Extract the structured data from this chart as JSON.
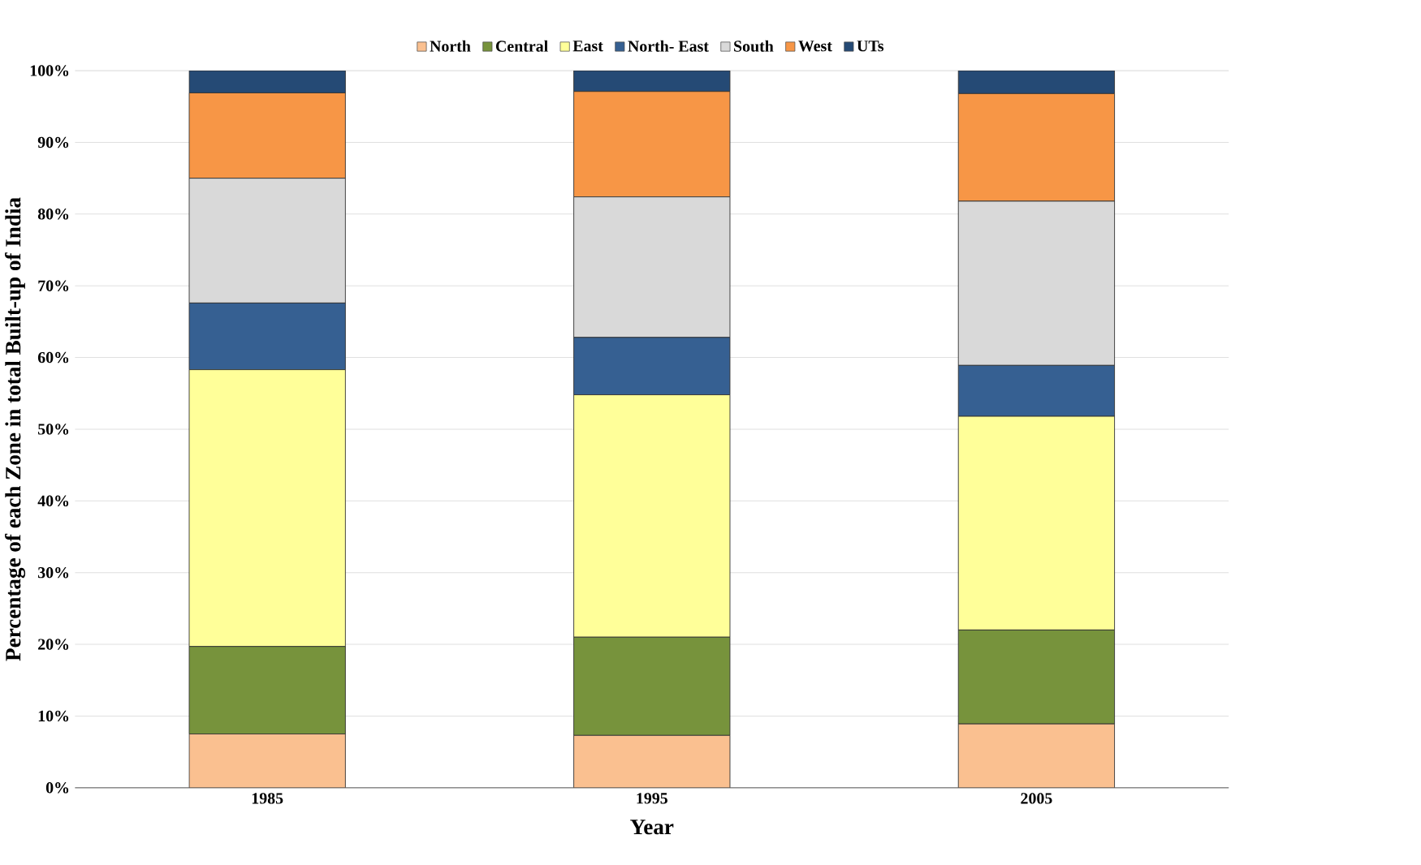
{
  "chart_data": {
    "type": "bar",
    "stacked": true,
    "xlabel": "Year",
    "ylabel": "Percentage of each Zone in total Built-up of India",
    "categories": [
      "1985",
      "1995",
      "2005"
    ],
    "series": [
      {
        "name": "North",
        "color": "#fac090",
        "values": [
          7.5,
          7.3,
          8.9
        ]
      },
      {
        "name": "Central",
        "color": "#77933c",
        "values": [
          12.2,
          13.7,
          13.1
        ]
      },
      {
        "name": "East",
        "color": "#ffff99",
        "values": [
          38.6,
          33.8,
          29.8
        ]
      },
      {
        "name": "North- East",
        "color": "#366092",
        "values": [
          9.3,
          8.0,
          7.1
        ]
      },
      {
        "name": "South",
        "color": "#d9d9d9",
        "values": [
          17.4,
          19.6,
          22.9
        ]
      },
      {
        "name": "West",
        "color": "#f79646",
        "values": [
          11.9,
          14.7,
          15.0
        ]
      },
      {
        "name": "UTs",
        "color": "#254a75",
        "values": [
          3.1,
          2.9,
          3.2
        ]
      }
    ],
    "ylim": [
      0,
      100
    ],
    "yticks": [
      {
        "value": 0,
        "label": "0%"
      },
      {
        "value": 10,
        "label": "10%"
      },
      {
        "value": 20,
        "label": "20%"
      },
      {
        "value": 30,
        "label": "30%"
      },
      {
        "value": 40,
        "label": "40%"
      },
      {
        "value": 50,
        "label": "50%"
      },
      {
        "value": 60,
        "label": "60%"
      },
      {
        "value": 70,
        "label": "70%"
      },
      {
        "value": 80,
        "label": "80%"
      },
      {
        "value": 90,
        "label": "90%"
      },
      {
        "value": 100,
        "label": "100%"
      }
    ],
    "grid": "y",
    "legend": "top"
  }
}
